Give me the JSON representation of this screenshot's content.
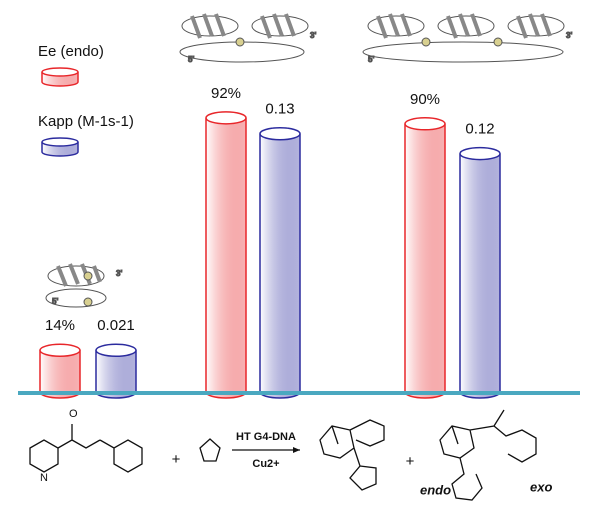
{
  "chart_data": {
    "type": "cylinder-bar",
    "categories": [
      null,
      null,
      null
    ],
    "series": [
      {
        "name": "Ee (endo)",
        "color": "#e8262a",
        "values": [
          14,
          92,
          90
        ],
        "value_labels": [
          "14%",
          "92%",
          "90%"
        ]
      },
      {
        "name": "Kapp (M-1s-1)",
        "color": "#2b2b9e",
        "values": [
          0.021,
          0.13,
          0.12
        ],
        "axis": "y2"
      }
    ],
    "ylim": [
      0,
      100
    ],
    "y2lim": [
      0,
      0.15
    ],
    "baseline_color": "#4aa8c0",
    "grid": false
  },
  "scheme": {
    "catalyst": "HT G4-DNA",
    "cofactor": "Cu2+",
    "plus": "+",
    "products": [
      "endo",
      "exo"
    ],
    "strand_ends": [
      "5'",
      "3'"
    ]
  }
}
